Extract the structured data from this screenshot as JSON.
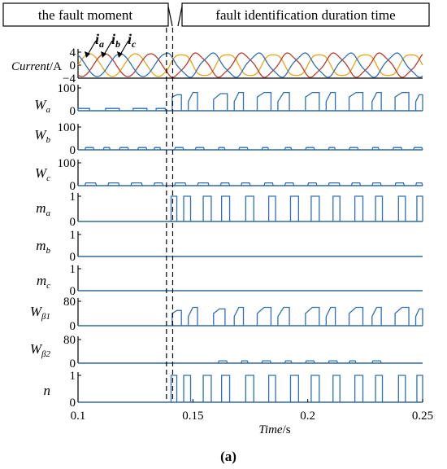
{
  "header": {
    "left_label": "the fault moment",
    "right_label": "fault identification duration time"
  },
  "chart_data": {
    "type": "line",
    "xlabel": "Time/s",
    "xlabel_main": "Time",
    "xlabel_unit": "/s",
    "xlim": [
      0.1,
      0.25
    ],
    "xticks": [
      0.1,
      0.15,
      0.2,
      0.25
    ],
    "xtick_labels": [
      "0.1",
      "0.15",
      "0.2",
      "0.25"
    ],
    "fault_moment": 0.1385,
    "identification_end": 0.1405,
    "caption": "(a)",
    "current_legend": [
      "i_a",
      "i_b",
      "i_c"
    ],
    "colors": {
      "a": "#e8a317",
      "b": "#c0392b",
      "c": "#2e6fb5",
      "plot": "#2e6fb5"
    },
    "panels": [
      {
        "key": "current",
        "label_main": "Current",
        "label_unit": "/A",
        "ylim": [
          -4,
          4
        ],
        "yticks": [
          "4",
          "0",
          "−4"
        ],
        "tick_values": [
          4,
          0,
          -4
        ]
      },
      {
        "key": "Wa",
        "label_main": "W",
        "label_sub": "a",
        "ylim": [
          0,
          100
        ],
        "yticks": [
          "100",
          "0"
        ],
        "tick_values": [
          100,
          0
        ]
      },
      {
        "key": "Wb",
        "label_main": "W",
        "label_sub": "b",
        "ylim": [
          0,
          100
        ],
        "yticks": [
          "100",
          "0"
        ],
        "tick_values": [
          100,
          0
        ]
      },
      {
        "key": "Wc",
        "label_main": "W",
        "label_sub": "c",
        "ylim": [
          0,
          100
        ],
        "yticks": [
          "100",
          "0"
        ],
        "tick_values": [
          100,
          0
        ]
      },
      {
        "key": "ma",
        "label_main": "m",
        "label_sub": "a",
        "ylim": [
          0,
          1
        ],
        "yticks": [
          "1",
          "0"
        ],
        "tick_values": [
          1,
          0
        ]
      },
      {
        "key": "mb",
        "label_main": "m",
        "label_sub": "b",
        "ylim": [
          0,
          1
        ],
        "yticks": [
          "1",
          "0"
        ],
        "tick_values": [
          1,
          0
        ]
      },
      {
        "key": "mc",
        "label_main": "m",
        "label_sub": "c",
        "ylim": [
          0,
          1
        ],
        "yticks": [
          "1",
          "0"
        ],
        "tick_values": [
          1,
          0
        ]
      },
      {
        "key": "Wb1",
        "label_main": "W",
        "label_sub": "β1",
        "ylim": [
          0,
          80
        ],
        "yticks": [
          "80",
          "0"
        ],
        "tick_values": [
          80,
          0
        ]
      },
      {
        "key": "Wb2",
        "label_main": "W",
        "label_sub": "β2",
        "ylim": [
          0,
          80
        ],
        "yticks": [
          "80",
          "0"
        ],
        "tick_values": [
          80,
          0
        ]
      },
      {
        "key": "n",
        "label_main": "n",
        "label_sub": "",
        "ylim": [
          0,
          1
        ],
        "yticks": [
          "1",
          "0"
        ],
        "tick_values": [
          1,
          0
        ]
      }
    ],
    "series": {
      "current_amplitude_pre": 3.5,
      "current_amplitude_post": 3.8,
      "current_frequency_hz": 50,
      "Wa": {
        "pre_level": 10,
        "pre_pulses": [
          [
            0.1,
            0.105
          ],
          [
            0.112,
            0.118
          ],
          [
            0.124,
            0.13
          ],
          [
            0.134,
            0.138
          ]
        ],
        "post_pulses": [
          [
            0.141,
            0.145,
            60,
            70
          ],
          [
            0.148,
            0.152,
            40,
            80
          ],
          [
            0.159,
            0.165,
            50,
            75
          ],
          [
            0.168,
            0.172,
            40,
            80
          ],
          [
            0.178,
            0.184,
            60,
            80
          ],
          [
            0.187,
            0.192,
            40,
            80
          ],
          [
            0.199,
            0.205,
            60,
            80
          ],
          [
            0.208,
            0.212,
            40,
            80
          ],
          [
            0.218,
            0.224,
            60,
            80
          ],
          [
            0.228,
            0.232,
            40,
            80
          ],
          [
            0.238,
            0.244,
            60,
            80
          ],
          [
            0.247,
            0.25,
            40,
            70
          ]
        ]
      },
      "Wb": {
        "level": 10,
        "pulses": [
          [
            0.103,
            0.107
          ],
          [
            0.111,
            0.114
          ],
          [
            0.118,
            0.122
          ],
          [
            0.126,
            0.13
          ],
          [
            0.133,
            0.136
          ],
          [
            0.142,
            0.146
          ],
          [
            0.151,
            0.155
          ],
          [
            0.161,
            0.164
          ],
          [
            0.17,
            0.174
          ],
          [
            0.18,
            0.183
          ],
          [
            0.19,
            0.193
          ],
          [
            0.199,
            0.203
          ],
          [
            0.209,
            0.212
          ],
          [
            0.218,
            0.222
          ],
          [
            0.228,
            0.231
          ],
          [
            0.237,
            0.241
          ],
          [
            0.246,
            0.25
          ]
        ]
      },
      "Wc": {
        "level": 12,
        "pulses": [
          [
            0.103,
            0.108
          ],
          [
            0.113,
            0.118
          ],
          [
            0.123,
            0.128
          ],
          [
            0.133,
            0.137
          ],
          [
            0.142,
            0.147
          ],
          [
            0.152,
            0.157
          ],
          [
            0.162,
            0.166
          ],
          [
            0.171,
            0.175
          ],
          [
            0.181,
            0.185
          ],
          [
            0.19,
            0.194
          ],
          [
            0.2,
            0.204
          ],
          [
            0.209,
            0.214
          ],
          [
            0.219,
            0.223
          ],
          [
            0.228,
            0.232
          ],
          [
            0.238,
            0.242
          ],
          [
            0.247,
            0.25
          ]
        ]
      },
      "ma": {
        "pulses": [
          [
            0.1405,
            0.143
          ],
          [
            0.146,
            0.149
          ],
          [
            0.1545,
            0.158
          ],
          [
            0.1625,
            0.166
          ],
          [
            0.173,
            0.1765
          ],
          [
            0.183,
            0.186
          ],
          [
            0.1925,
            0.196
          ],
          [
            0.2015,
            0.205
          ],
          [
            0.211,
            0.214
          ],
          [
            0.2205,
            0.224
          ],
          [
            0.2295,
            0.2325
          ],
          [
            0.2395,
            0.2425
          ],
          [
            0.2475,
            0.25
          ]
        ]
      },
      "Wb1": {
        "post_pulses": [
          [
            0.141,
            0.145,
            40,
            50
          ],
          [
            0.148,
            0.152,
            30,
            60
          ],
          [
            0.159,
            0.164,
            40,
            55
          ],
          [
            0.168,
            0.172,
            30,
            60
          ],
          [
            0.178,
            0.184,
            40,
            60
          ],
          [
            0.187,
            0.192,
            30,
            60
          ],
          [
            0.199,
            0.205,
            40,
            60
          ],
          [
            0.208,
            0.212,
            30,
            60
          ],
          [
            0.218,
            0.224,
            40,
            60
          ],
          [
            0.228,
            0.232,
            30,
            60
          ],
          [
            0.238,
            0.244,
            40,
            60
          ],
          [
            0.247,
            0.25,
            30,
            55
          ]
        ]
      },
      "Wb2": {
        "level": 8,
        "pulses": [
          [
            0.161,
            0.165
          ],
          [
            0.171,
            0.174
          ],
          [
            0.18,
            0.184
          ],
          [
            0.19,
            0.193
          ],
          [
            0.199,
            0.203
          ],
          [
            0.209,
            0.213
          ],
          [
            0.218,
            0.221
          ],
          [
            0.228,
            0.232
          ]
        ]
      },
      "n": {
        "pulses": [
          [
            0.1405,
            0.143
          ],
          [
            0.146,
            0.149
          ],
          [
            0.1545,
            0.158
          ],
          [
            0.1625,
            0.166
          ],
          [
            0.173,
            0.1765
          ],
          [
            0.183,
            0.186
          ],
          [
            0.1925,
            0.196
          ],
          [
            0.2015,
            0.205
          ],
          [
            0.211,
            0.214
          ],
          [
            0.2205,
            0.224
          ],
          [
            0.2295,
            0.2325
          ],
          [
            0.2395,
            0.2425
          ],
          [
            0.2475,
            0.25
          ]
        ]
      }
    }
  }
}
